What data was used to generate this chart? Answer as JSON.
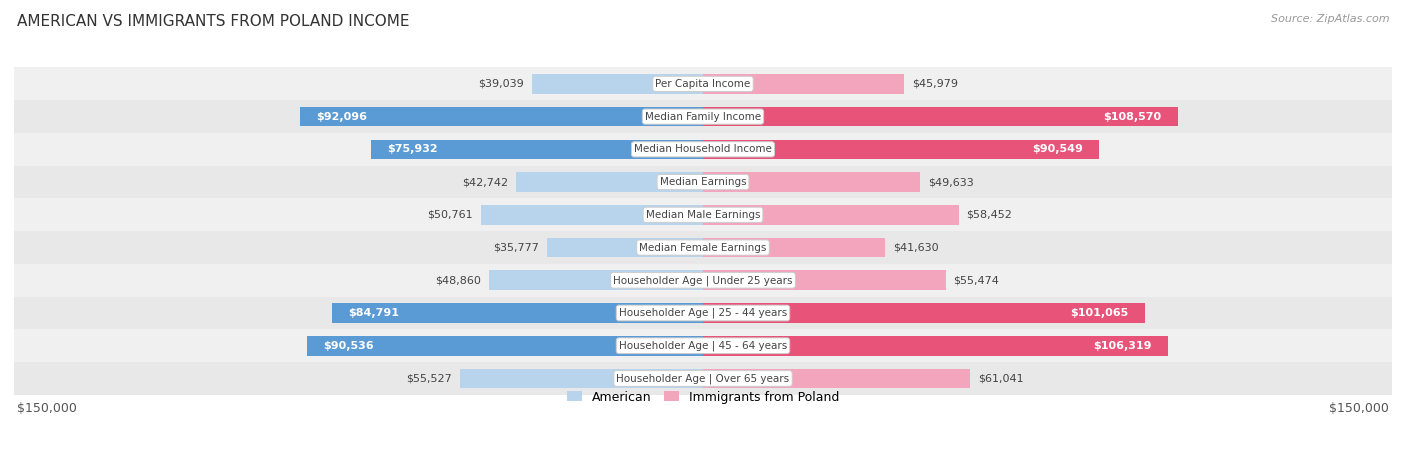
{
  "title": "AMERICAN VS IMMIGRANTS FROM POLAND INCOME",
  "source": "Source: ZipAtlas.com",
  "categories": [
    "Per Capita Income",
    "Median Family Income",
    "Median Household Income",
    "Median Earnings",
    "Median Male Earnings",
    "Median Female Earnings",
    "Householder Age | Under 25 years",
    "Householder Age | 25 - 44 years",
    "Householder Age | 45 - 64 years",
    "Householder Age | Over 65 years"
  ],
  "american_values": [
    39039,
    92096,
    75932,
    42742,
    50761,
    35777,
    48860,
    84791,
    90536,
    55527
  ],
  "poland_values": [
    45979,
    108570,
    90549,
    49633,
    58452,
    41630,
    55474,
    101065,
    106319,
    61041
  ],
  "american_label": "American",
  "poland_label": "Immigrants from Poland",
  "max_value": 150000,
  "american_color_high": "#5b9bd5",
  "american_color_low": "#b8d4ed",
  "poland_color_high": "#e8537a",
  "poland_color_low": "#f2a5bc",
  "threshold": 75000,
  "bg_color": "#ffffff",
  "row_bg_colors": [
    "#f0f0f0",
    "#e8e8e8"
  ],
  "xlabel_left": "$150,000",
  "xlabel_right": "$150,000",
  "label_fontsize": 8,
  "title_fontsize": 11,
  "source_fontsize": 8
}
